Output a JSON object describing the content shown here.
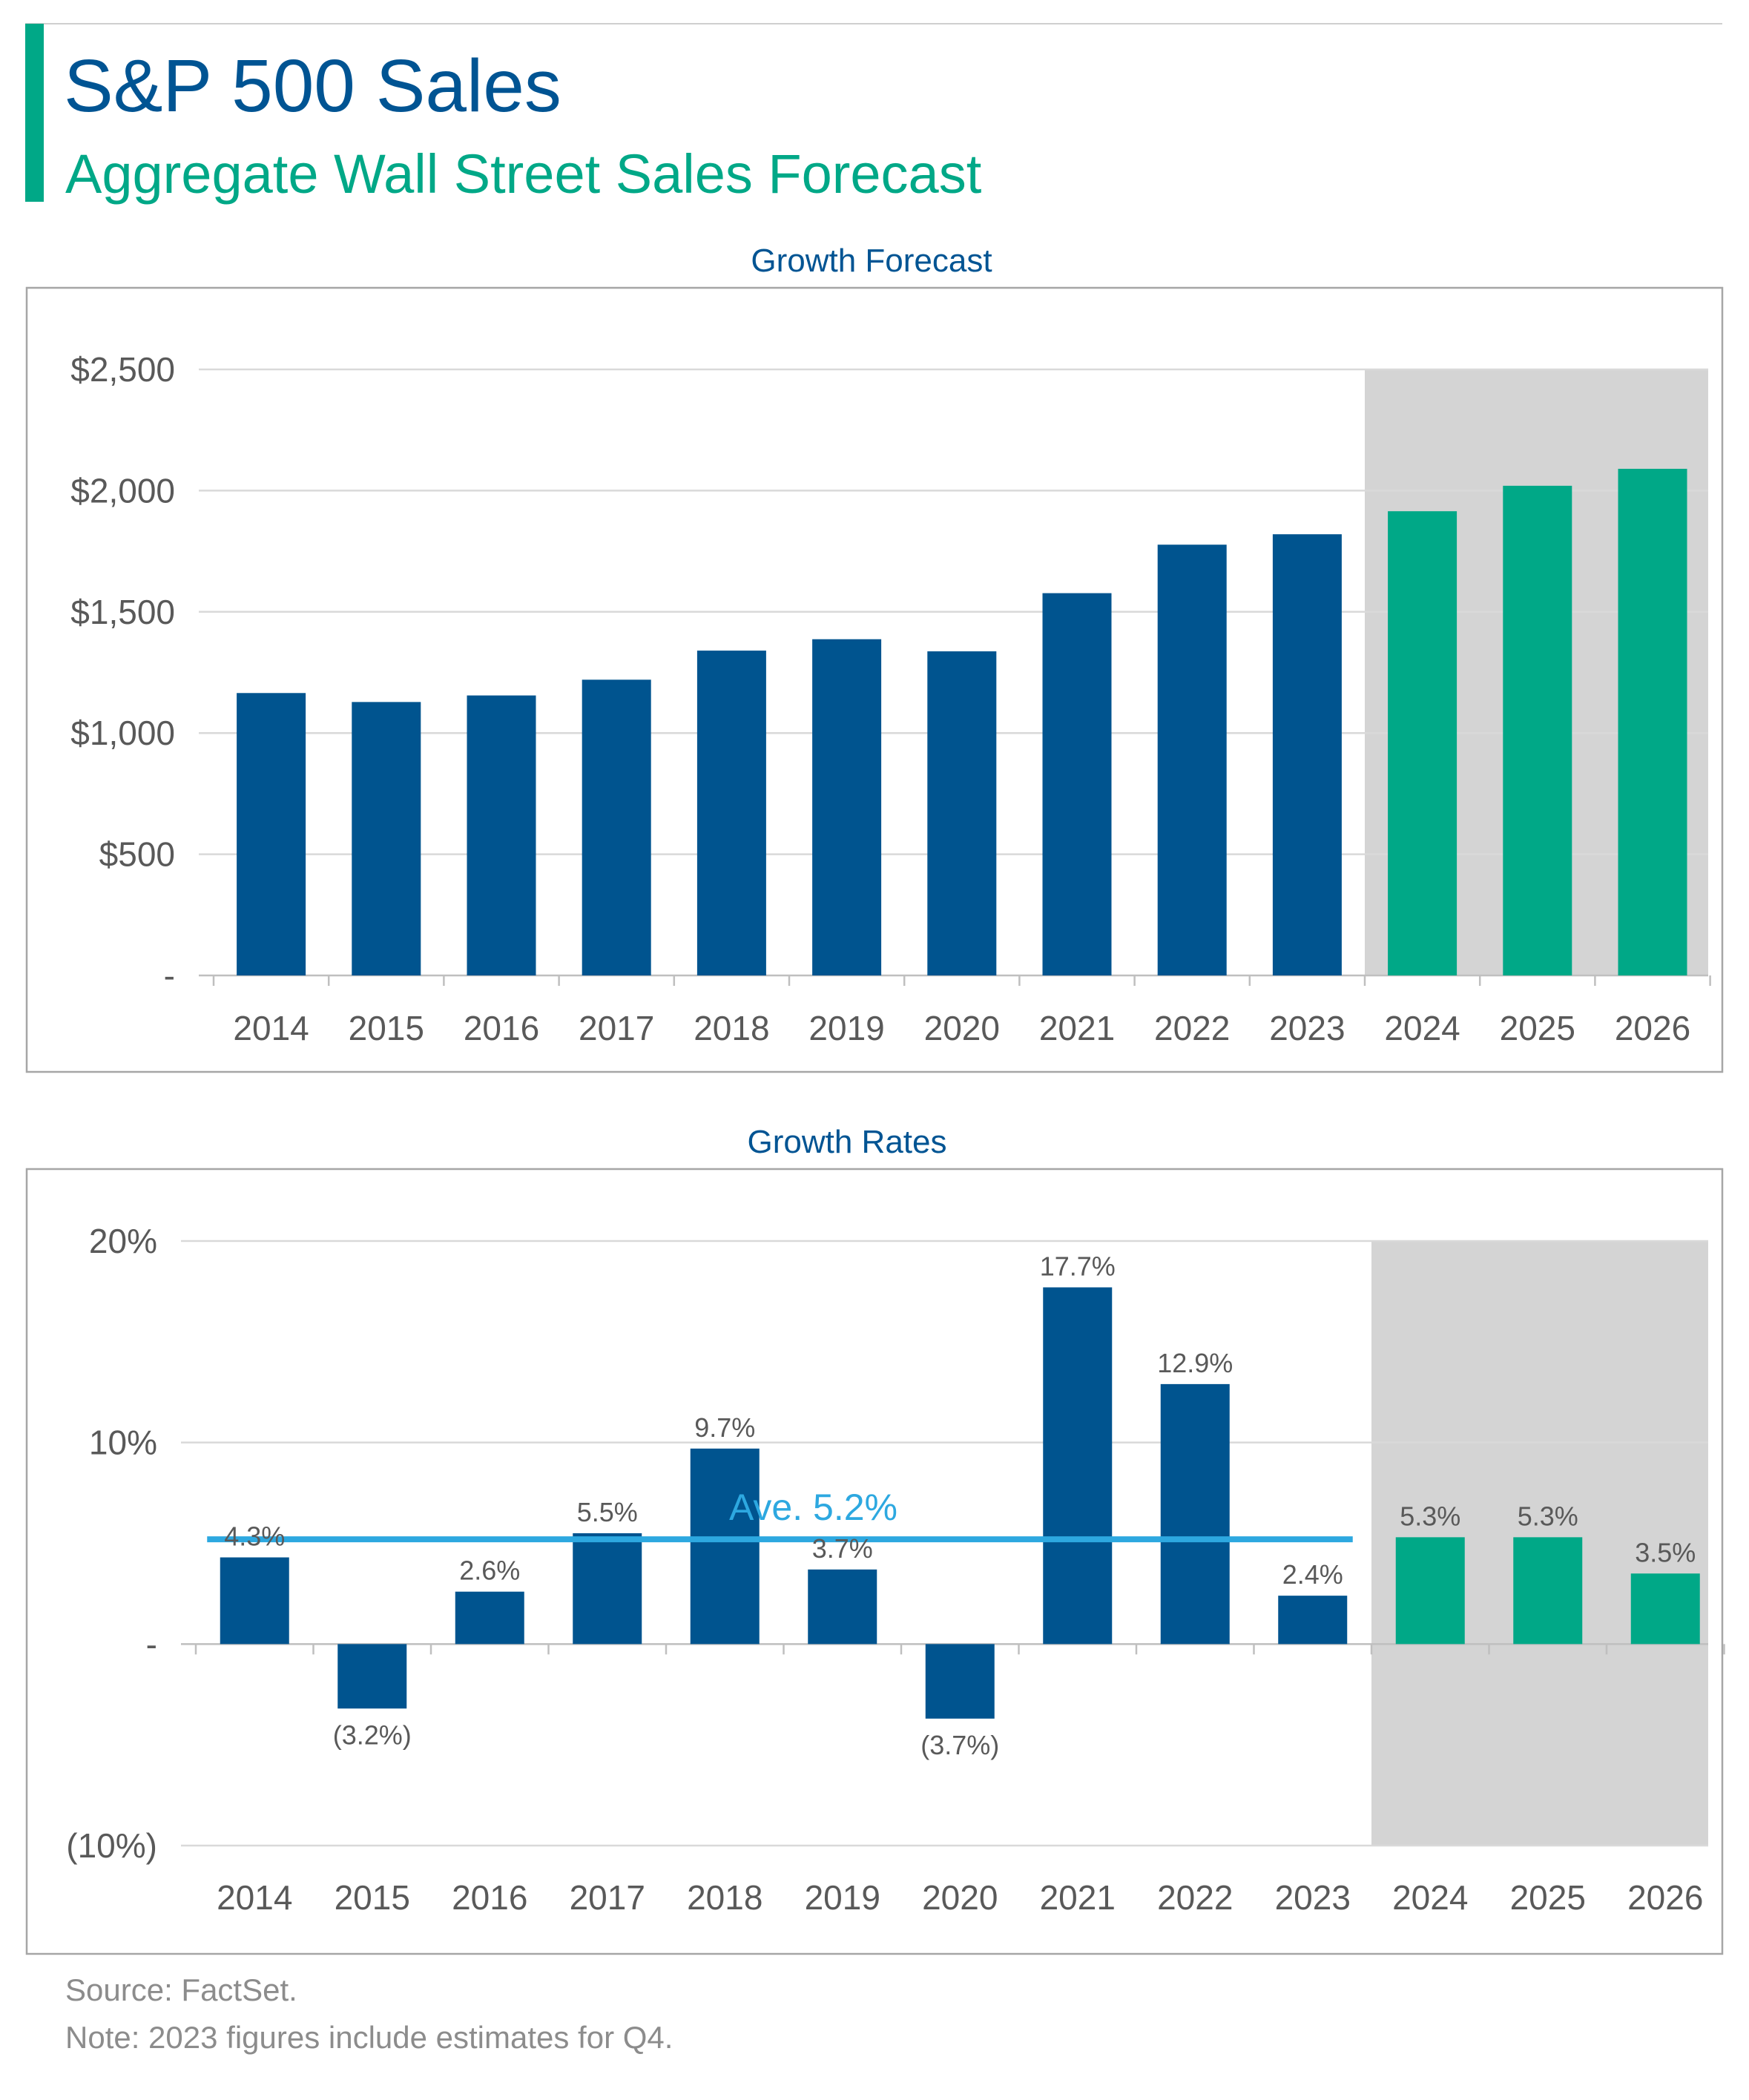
{
  "header": {
    "title": "S&P 500 Sales",
    "subtitle": "Aggregate Wall Street Sales Forecast"
  },
  "colors": {
    "accent_bar": "#00A887",
    "title": "#005493",
    "subtitle": "#00A887",
    "actual": "#00548F",
    "forecast": "#00A887",
    "shade": "#D4D4D4",
    "average_line": "#2DA8E0",
    "grid": "#D9D9D9",
    "axis_text": "#595959",
    "footer_text": "#8C8C8C"
  },
  "chart_data": [
    {
      "type": "bar",
      "title": "Growth Forecast",
      "categories": [
        "2014",
        "2015",
        "2016",
        "2017",
        "2018",
        "2019",
        "2020",
        "2021",
        "2022",
        "2023",
        "2024",
        "2025",
        "2026"
      ],
      "values": [
        1165,
        1128,
        1155,
        1220,
        1340,
        1387,
        1337,
        1577,
        1777,
        1820,
        1915,
        2020,
        2090
      ],
      "forecast_categories": [
        "2024",
        "2025",
        "2026"
      ],
      "ylim": [
        0,
        2500
      ],
      "yticks": [
        0,
        500,
        1000,
        1500,
        2000,
        2500
      ],
      "ytick_labels": [
        "-",
        "$500",
        "$1,000",
        "$1,500",
        "$2,000",
        "$2,500"
      ],
      "grid": true,
      "shaded_forecast_region": true
    },
    {
      "type": "bar",
      "title": "Growth Rates",
      "categories": [
        "2014",
        "2015",
        "2016",
        "2017",
        "2018",
        "2019",
        "2020",
        "2021",
        "2022",
        "2023",
        "2024",
        "2025",
        "2026"
      ],
      "values": [
        4.3,
        -3.2,
        2.6,
        5.5,
        9.7,
        3.7,
        -3.7,
        17.7,
        12.9,
        2.4,
        5.3,
        5.3,
        3.5
      ],
      "data_labels": [
        "4.3%",
        "(3.2%)",
        "2.6%",
        "5.5%",
        "9.7%",
        "3.7%",
        "(3.7%)",
        "17.7%",
        "12.9%",
        "2.4%",
        "5.3%",
        "5.3%",
        "3.5%"
      ],
      "forecast_categories": [
        "2024",
        "2025",
        "2026"
      ],
      "ylim": [
        -10,
        20
      ],
      "yticks": [
        -10,
        0,
        10,
        20
      ],
      "ytick_labels": [
        "(10%)",
        "-",
        "10%",
        "20%"
      ],
      "grid": true,
      "shaded_forecast_region": true,
      "average": {
        "value": 5.2,
        "label": "Ave. 5.2%",
        "span": [
          "2014",
          "2023"
        ]
      }
    }
  ],
  "footer": {
    "source": "Source: FactSet.",
    "note": "Note: 2023 figures include estimates for Q4."
  }
}
